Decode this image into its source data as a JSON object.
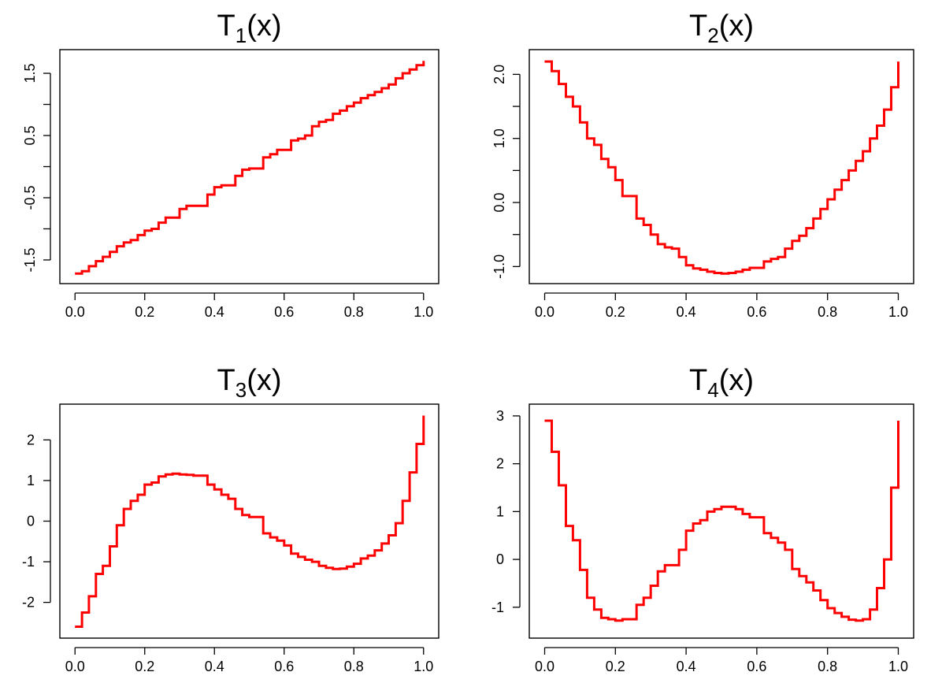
{
  "figure": {
    "curve_color": "#ff0000"
  },
  "chart_data": [
    {
      "type": "line",
      "style": "step",
      "title": "T(x)",
      "title_main": "T",
      "title_sub": "1",
      "title_tail": "(x)",
      "xlabel": "",
      "ylabel": "",
      "xlim": [
        0.0,
        1.0
      ],
      "ylim": [
        -1.73,
        1.73
      ],
      "x_ticks": [
        0.0,
        0.2,
        0.4,
        0.6,
        0.8,
        1.0
      ],
      "x_tick_labels": [
        "0.0",
        "0.2",
        "0.4",
        "0.6",
        "0.8",
        "1.0"
      ],
      "y_ticks": [
        -1.5,
        -1.0,
        -0.5,
        0.0,
        0.5,
        1.0,
        1.5
      ],
      "y_tick_labels": [
        "-1.5",
        "",
        "-0.5",
        "",
        "0.5",
        "",
        "1.5"
      ],
      "y_label_rotated": true,
      "grid": false,
      "series": [
        {
          "x": [
            0.0,
            0.02,
            0.04,
            0.06,
            0.08,
            0.1,
            0.12,
            0.14,
            0.16,
            0.18,
            0.2,
            0.22,
            0.24,
            0.26,
            0.28,
            0.3,
            0.32,
            0.34,
            0.36,
            0.38,
            0.4,
            0.42,
            0.44,
            0.46,
            0.48,
            0.5,
            0.52,
            0.54,
            0.56,
            0.58,
            0.6,
            0.62,
            0.64,
            0.66,
            0.68,
            0.7,
            0.72,
            0.74,
            0.76,
            0.78,
            0.8,
            0.82,
            0.84,
            0.86,
            0.88,
            0.9,
            0.92,
            0.94,
            0.96,
            0.98,
            1.0
          ],
          "y": [
            -1.72,
            -1.68,
            -1.6,
            -1.52,
            -1.45,
            -1.37,
            -1.28,
            -1.22,
            -1.18,
            -1.1,
            -1.03,
            -1.0,
            -0.9,
            -0.82,
            -0.82,
            -0.68,
            -0.63,
            -0.63,
            -0.63,
            -0.45,
            -0.33,
            -0.3,
            -0.3,
            -0.15,
            -0.05,
            -0.03,
            -0.03,
            0.15,
            0.2,
            0.27,
            0.27,
            0.42,
            0.45,
            0.5,
            0.65,
            0.72,
            0.75,
            0.85,
            0.9,
            0.97,
            1.03,
            1.1,
            1.15,
            1.2,
            1.26,
            1.32,
            1.42,
            1.5,
            1.56,
            1.63,
            1.7
          ]
        }
      ]
    },
    {
      "type": "line",
      "style": "step",
      "title": "T(x)",
      "title_main": "T",
      "title_sub": "2",
      "title_tail": "(x)",
      "xlabel": "",
      "ylabel": "",
      "xlim": [
        0.0,
        1.0
      ],
      "ylim": [
        -1.12,
        2.24
      ],
      "x_ticks": [
        0.0,
        0.2,
        0.4,
        0.6,
        0.8,
        1.0
      ],
      "x_tick_labels": [
        "0.0",
        "0.2",
        "0.4",
        "0.6",
        "0.8",
        "1.0"
      ],
      "y_ticks": [
        -1.0,
        -0.5,
        0.0,
        0.5,
        1.0,
        1.5,
        2.0
      ],
      "y_tick_labels": [
        "-1.0",
        "",
        "0.0",
        "",
        "1.0",
        "",
        "2.0"
      ],
      "y_label_rotated": true,
      "grid": false,
      "series": [
        {
          "x": [
            0.0,
            0.02,
            0.04,
            0.06,
            0.08,
            0.1,
            0.12,
            0.14,
            0.16,
            0.18,
            0.2,
            0.22,
            0.24,
            0.26,
            0.28,
            0.3,
            0.32,
            0.34,
            0.36,
            0.38,
            0.4,
            0.42,
            0.44,
            0.46,
            0.48,
            0.5,
            0.52,
            0.54,
            0.56,
            0.58,
            0.6,
            0.62,
            0.64,
            0.66,
            0.68,
            0.7,
            0.72,
            0.74,
            0.76,
            0.78,
            0.8,
            0.82,
            0.84,
            0.86,
            0.88,
            0.9,
            0.92,
            0.94,
            0.96,
            0.98,
            1.0
          ],
          "y": [
            2.2,
            2.05,
            1.85,
            1.65,
            1.5,
            1.25,
            1.0,
            0.9,
            0.68,
            0.55,
            0.35,
            0.1,
            0.1,
            -0.25,
            -0.35,
            -0.5,
            -0.65,
            -0.7,
            -0.72,
            -0.85,
            -0.98,
            -1.03,
            -1.05,
            -1.08,
            -1.1,
            -1.11,
            -1.1,
            -1.08,
            -1.05,
            -1.02,
            -1.02,
            -0.92,
            -0.88,
            -0.85,
            -0.72,
            -0.6,
            -0.52,
            -0.4,
            -0.25,
            -0.1,
            0.05,
            0.2,
            0.35,
            0.5,
            0.65,
            0.8,
            1.0,
            1.2,
            1.45,
            1.8,
            2.2
          ]
        }
      ]
    },
    {
      "type": "line",
      "style": "step",
      "title": "T(x)",
      "title_main": "T",
      "title_sub": "3",
      "title_tail": "(x)",
      "xlabel": "",
      "ylabel": "",
      "xlim": [
        0.0,
        1.0
      ],
      "ylim": [
        -2.65,
        2.65
      ],
      "x_ticks": [
        0.0,
        0.2,
        0.4,
        0.6,
        0.8,
        1.0
      ],
      "x_tick_labels": [
        "0.0",
        "0.2",
        "0.4",
        "0.6",
        "0.8",
        "1.0"
      ],
      "y_ticks": [
        -2,
        -1,
        0,
        1,
        2
      ],
      "y_tick_labels": [
        "-2",
        "-1",
        "0",
        "1",
        "2"
      ],
      "y_label_rotated": false,
      "grid": false,
      "series": [
        {
          "x": [
            0.0,
            0.02,
            0.04,
            0.06,
            0.08,
            0.1,
            0.12,
            0.14,
            0.16,
            0.18,
            0.2,
            0.22,
            0.24,
            0.26,
            0.28,
            0.3,
            0.32,
            0.34,
            0.36,
            0.38,
            0.4,
            0.42,
            0.44,
            0.46,
            0.48,
            0.5,
            0.52,
            0.54,
            0.56,
            0.58,
            0.6,
            0.62,
            0.64,
            0.66,
            0.68,
            0.7,
            0.72,
            0.74,
            0.76,
            0.78,
            0.8,
            0.82,
            0.84,
            0.86,
            0.88,
            0.9,
            0.92,
            0.94,
            0.96,
            0.98,
            1.0
          ],
          "y": [
            -2.6,
            -2.25,
            -1.85,
            -1.3,
            -1.1,
            -0.62,
            -0.1,
            0.3,
            0.5,
            0.65,
            0.9,
            0.95,
            1.1,
            1.15,
            1.17,
            1.15,
            1.14,
            1.12,
            1.12,
            0.9,
            0.78,
            0.65,
            0.55,
            0.3,
            0.15,
            0.1,
            0.1,
            -0.3,
            -0.4,
            -0.48,
            -0.6,
            -0.8,
            -0.88,
            -0.95,
            -1.0,
            -1.1,
            -1.15,
            -1.18,
            -1.17,
            -1.12,
            -1.05,
            -0.92,
            -0.85,
            -0.72,
            -0.55,
            -0.35,
            -0.05,
            0.5,
            1.2,
            1.9,
            2.6
          ]
        }
      ]
    },
    {
      "type": "line",
      "style": "step",
      "title": "T(x)",
      "title_main": "T",
      "title_sub": "4",
      "title_tail": "(x)",
      "xlabel": "",
      "ylabel": "",
      "xlim": [
        0.0,
        1.0
      ],
      "ylim": [
        -1.45,
        3.05
      ],
      "x_ticks": [
        0.0,
        0.2,
        0.4,
        0.6,
        0.8,
        1.0
      ],
      "x_tick_labels": [
        "0.0",
        "0.2",
        "0.4",
        "0.6",
        "0.8",
        "1.0"
      ],
      "y_ticks": [
        -1,
        0,
        1,
        2,
        3
      ],
      "y_tick_labels": [
        "-1",
        "0",
        "1",
        "2",
        "3"
      ],
      "y_label_rotated": false,
      "grid": false,
      "series": [
        {
          "x": [
            0.0,
            0.02,
            0.04,
            0.06,
            0.08,
            0.1,
            0.12,
            0.14,
            0.16,
            0.18,
            0.2,
            0.22,
            0.24,
            0.26,
            0.28,
            0.3,
            0.32,
            0.34,
            0.36,
            0.38,
            0.4,
            0.42,
            0.44,
            0.46,
            0.48,
            0.5,
            0.52,
            0.54,
            0.56,
            0.58,
            0.6,
            0.62,
            0.64,
            0.66,
            0.68,
            0.7,
            0.72,
            0.74,
            0.76,
            0.78,
            0.8,
            0.82,
            0.84,
            0.86,
            0.88,
            0.9,
            0.92,
            0.94,
            0.96,
            0.98,
            1.0
          ],
          "y": [
            2.9,
            2.25,
            1.55,
            0.7,
            0.4,
            -0.22,
            -0.8,
            -1.05,
            -1.22,
            -1.25,
            -1.28,
            -1.25,
            -1.25,
            -0.95,
            -0.8,
            -0.55,
            -0.25,
            -0.12,
            -0.12,
            0.2,
            0.6,
            0.75,
            0.82,
            1.0,
            1.05,
            1.1,
            1.1,
            1.05,
            0.95,
            0.88,
            0.88,
            0.55,
            0.45,
            0.35,
            0.2,
            -0.2,
            -0.35,
            -0.48,
            -0.65,
            -0.85,
            -1.02,
            -1.12,
            -1.2,
            -1.26,
            -1.28,
            -1.25,
            -1.05,
            -0.6,
            0.0,
            1.5,
            2.9
          ]
        }
      ]
    }
  ]
}
